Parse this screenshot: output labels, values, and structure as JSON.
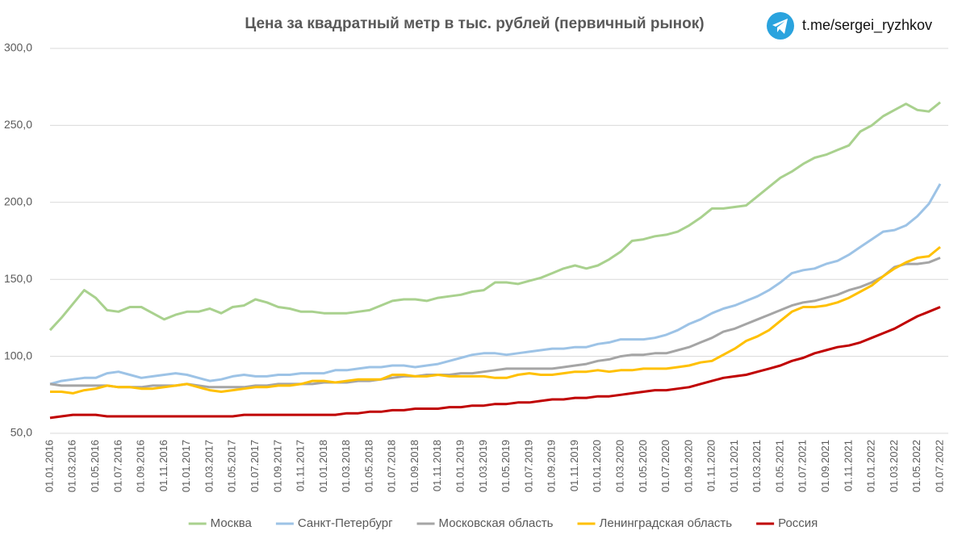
{
  "chart_data": {
    "type": "line",
    "title": "Цена за квадратный метр в тыс. рублей (первичный рынок)",
    "annotations": [
      "t.me/sergei_ryzhkov"
    ],
    "categories": [
      "01.01.2016",
      null,
      "01.03.2016",
      null,
      "01.05.2016",
      null,
      "01.07.2016",
      null,
      "01.09.2016",
      null,
      "01.11.2016",
      null,
      "01.01.2017",
      null,
      "01.03.2017",
      null,
      "01.05.2017",
      null,
      "01.07.2017",
      null,
      "01.09.2017",
      null,
      "01.11.2017",
      null,
      "01.01.2018",
      null,
      "01.03.2018",
      null,
      "01.05.2018",
      null,
      "01.07.2018",
      null,
      "01.09.2018",
      null,
      "01.11.2018",
      null,
      "01.01.2019",
      null,
      "01.03.2019",
      null,
      "01.05.2019",
      null,
      "01.07.2019",
      null,
      "01.09.2019",
      null,
      "01.11.2019",
      null,
      "01.01.2020",
      null,
      "01.03.2020",
      null,
      "01.05.2020",
      null,
      "01.07.2020",
      null,
      "01.09.2020",
      null,
      "01.11.2020",
      null,
      "01.01.2021",
      null,
      "01.03.2021",
      null,
      "01.05.2021",
      null,
      "01.07.2021",
      null,
      "01.09.2021",
      null,
      "01.11.2021",
      null,
      "01.01.2022",
      null,
      "01.03.2022",
      null,
      "01.05.2022",
      null,
      "01.07.2022"
    ],
    "series": [
      {
        "name": "Москва",
        "color": "#a9d18e",
        "values": [
          117,
          125,
          134,
          143,
          138,
          130,
          129,
          132,
          132,
          128,
          124,
          127,
          129,
          129,
          131,
          128,
          132,
          133,
          137,
          135,
          132,
          131,
          129,
          129,
          128,
          128,
          128,
          129,
          130,
          133,
          136,
          137,
          137,
          136,
          138,
          139,
          140,
          142,
          143,
          148,
          148,
          147,
          149,
          151,
          154,
          157,
          159,
          157,
          159,
          163,
          168,
          175,
          176,
          178,
          179,
          181,
          185,
          190,
          196,
          196,
          197,
          198,
          204,
          210,
          216,
          220,
          225,
          229,
          231,
          234,
          237,
          246,
          250,
          256,
          260,
          264,
          260,
          259,
          265
        ]
      },
      {
        "name": "Санкт-Петербург",
        "color": "#9dc3e6",
        "values": [
          82,
          84,
          85,
          86,
          86,
          89,
          90,
          88,
          86,
          87,
          88,
          89,
          88,
          86,
          84,
          85,
          87,
          88,
          87,
          87,
          88,
          88,
          89,
          89,
          89,
          91,
          91,
          92,
          93,
          93,
          94,
          94,
          93,
          94,
          95,
          97,
          99,
          101,
          102,
          102,
          101,
          102,
          103,
          104,
          105,
          105,
          106,
          106,
          108,
          109,
          111,
          111,
          111,
          112,
          114,
          117,
          121,
          124,
          128,
          131,
          133,
          136,
          139,
          143,
          148,
          154,
          156,
          157,
          160,
          162,
          166,
          171,
          176,
          181,
          182,
          185,
          191,
          199,
          212
        ]
      },
      {
        "name": "Московская область",
        "color": "#a5a5a5",
        "values": [
          82,
          81,
          81,
          81,
          81,
          81,
          80,
          80,
          80,
          81,
          81,
          81,
          82,
          81,
          80,
          80,
          80,
          80,
          81,
          81,
          82,
          82,
          82,
          82,
          83,
          83,
          83,
          84,
          84,
          85,
          86,
          87,
          87,
          88,
          88,
          88,
          89,
          89,
          90,
          91,
          92,
          92,
          92,
          92,
          92,
          93,
          94,
          95,
          97,
          98,
          100,
          101,
          101,
          102,
          102,
          104,
          106,
          109,
          112,
          116,
          118,
          121,
          124,
          127,
          130,
          133,
          135,
          136,
          138,
          140,
          143,
          145,
          148,
          152,
          158,
          160,
          160,
          161,
          164
        ]
      },
      {
        "name": "Ленинградская область",
        "color": "#ffc000",
        "values": [
          77,
          77,
          76,
          78,
          79,
          81,
          80,
          80,
          79,
          79,
          80,
          81,
          82,
          80,
          78,
          77,
          78,
          79,
          80,
          80,
          81,
          81,
          82,
          84,
          84,
          83,
          84,
          85,
          85,
          85,
          88,
          88,
          87,
          87,
          88,
          87,
          87,
          87,
          87,
          86,
          86,
          88,
          89,
          88,
          88,
          89,
          90,
          90,
          91,
          90,
          91,
          91,
          92,
          92,
          92,
          93,
          94,
          96,
          97,
          101,
          105,
          110,
          113,
          117,
          123,
          129,
          132,
          132,
          133,
          135,
          138,
          142,
          146,
          152,
          157,
          161,
          164,
          165,
          171
        ]
      },
      {
        "name": "Россия",
        "color": "#c00000",
        "values": [
          60,
          61,
          62,
          62,
          62,
          61,
          61,
          61,
          61,
          61,
          61,
          61,
          61,
          61,
          61,
          61,
          61,
          62,
          62,
          62,
          62,
          62,
          62,
          62,
          62,
          62,
          63,
          63,
          64,
          64,
          65,
          65,
          66,
          66,
          66,
          67,
          67,
          68,
          68,
          69,
          69,
          70,
          70,
          71,
          72,
          72,
          73,
          73,
          74,
          74,
          75,
          76,
          77,
          78,
          78,
          79,
          80,
          82,
          84,
          86,
          87,
          88,
          90,
          92,
          94,
          97,
          99,
          102,
          104,
          106,
          107,
          109,
          112,
          115,
          118,
          122,
          126,
          129,
          132
        ]
      }
    ],
    "ylim": [
      50,
      300
    ],
    "yticks": [
      {
        "value": 50,
        "label": "50,0"
      },
      {
        "value": 100,
        "label": "100,0"
      },
      {
        "value": 150,
        "label": "150,0"
      },
      {
        "value": 200,
        "label": "200,0"
      },
      {
        "value": 250,
        "label": "250,0"
      },
      {
        "value": 300,
        "label": "300,0"
      }
    ],
    "grid": true,
    "legend": "bottom"
  }
}
